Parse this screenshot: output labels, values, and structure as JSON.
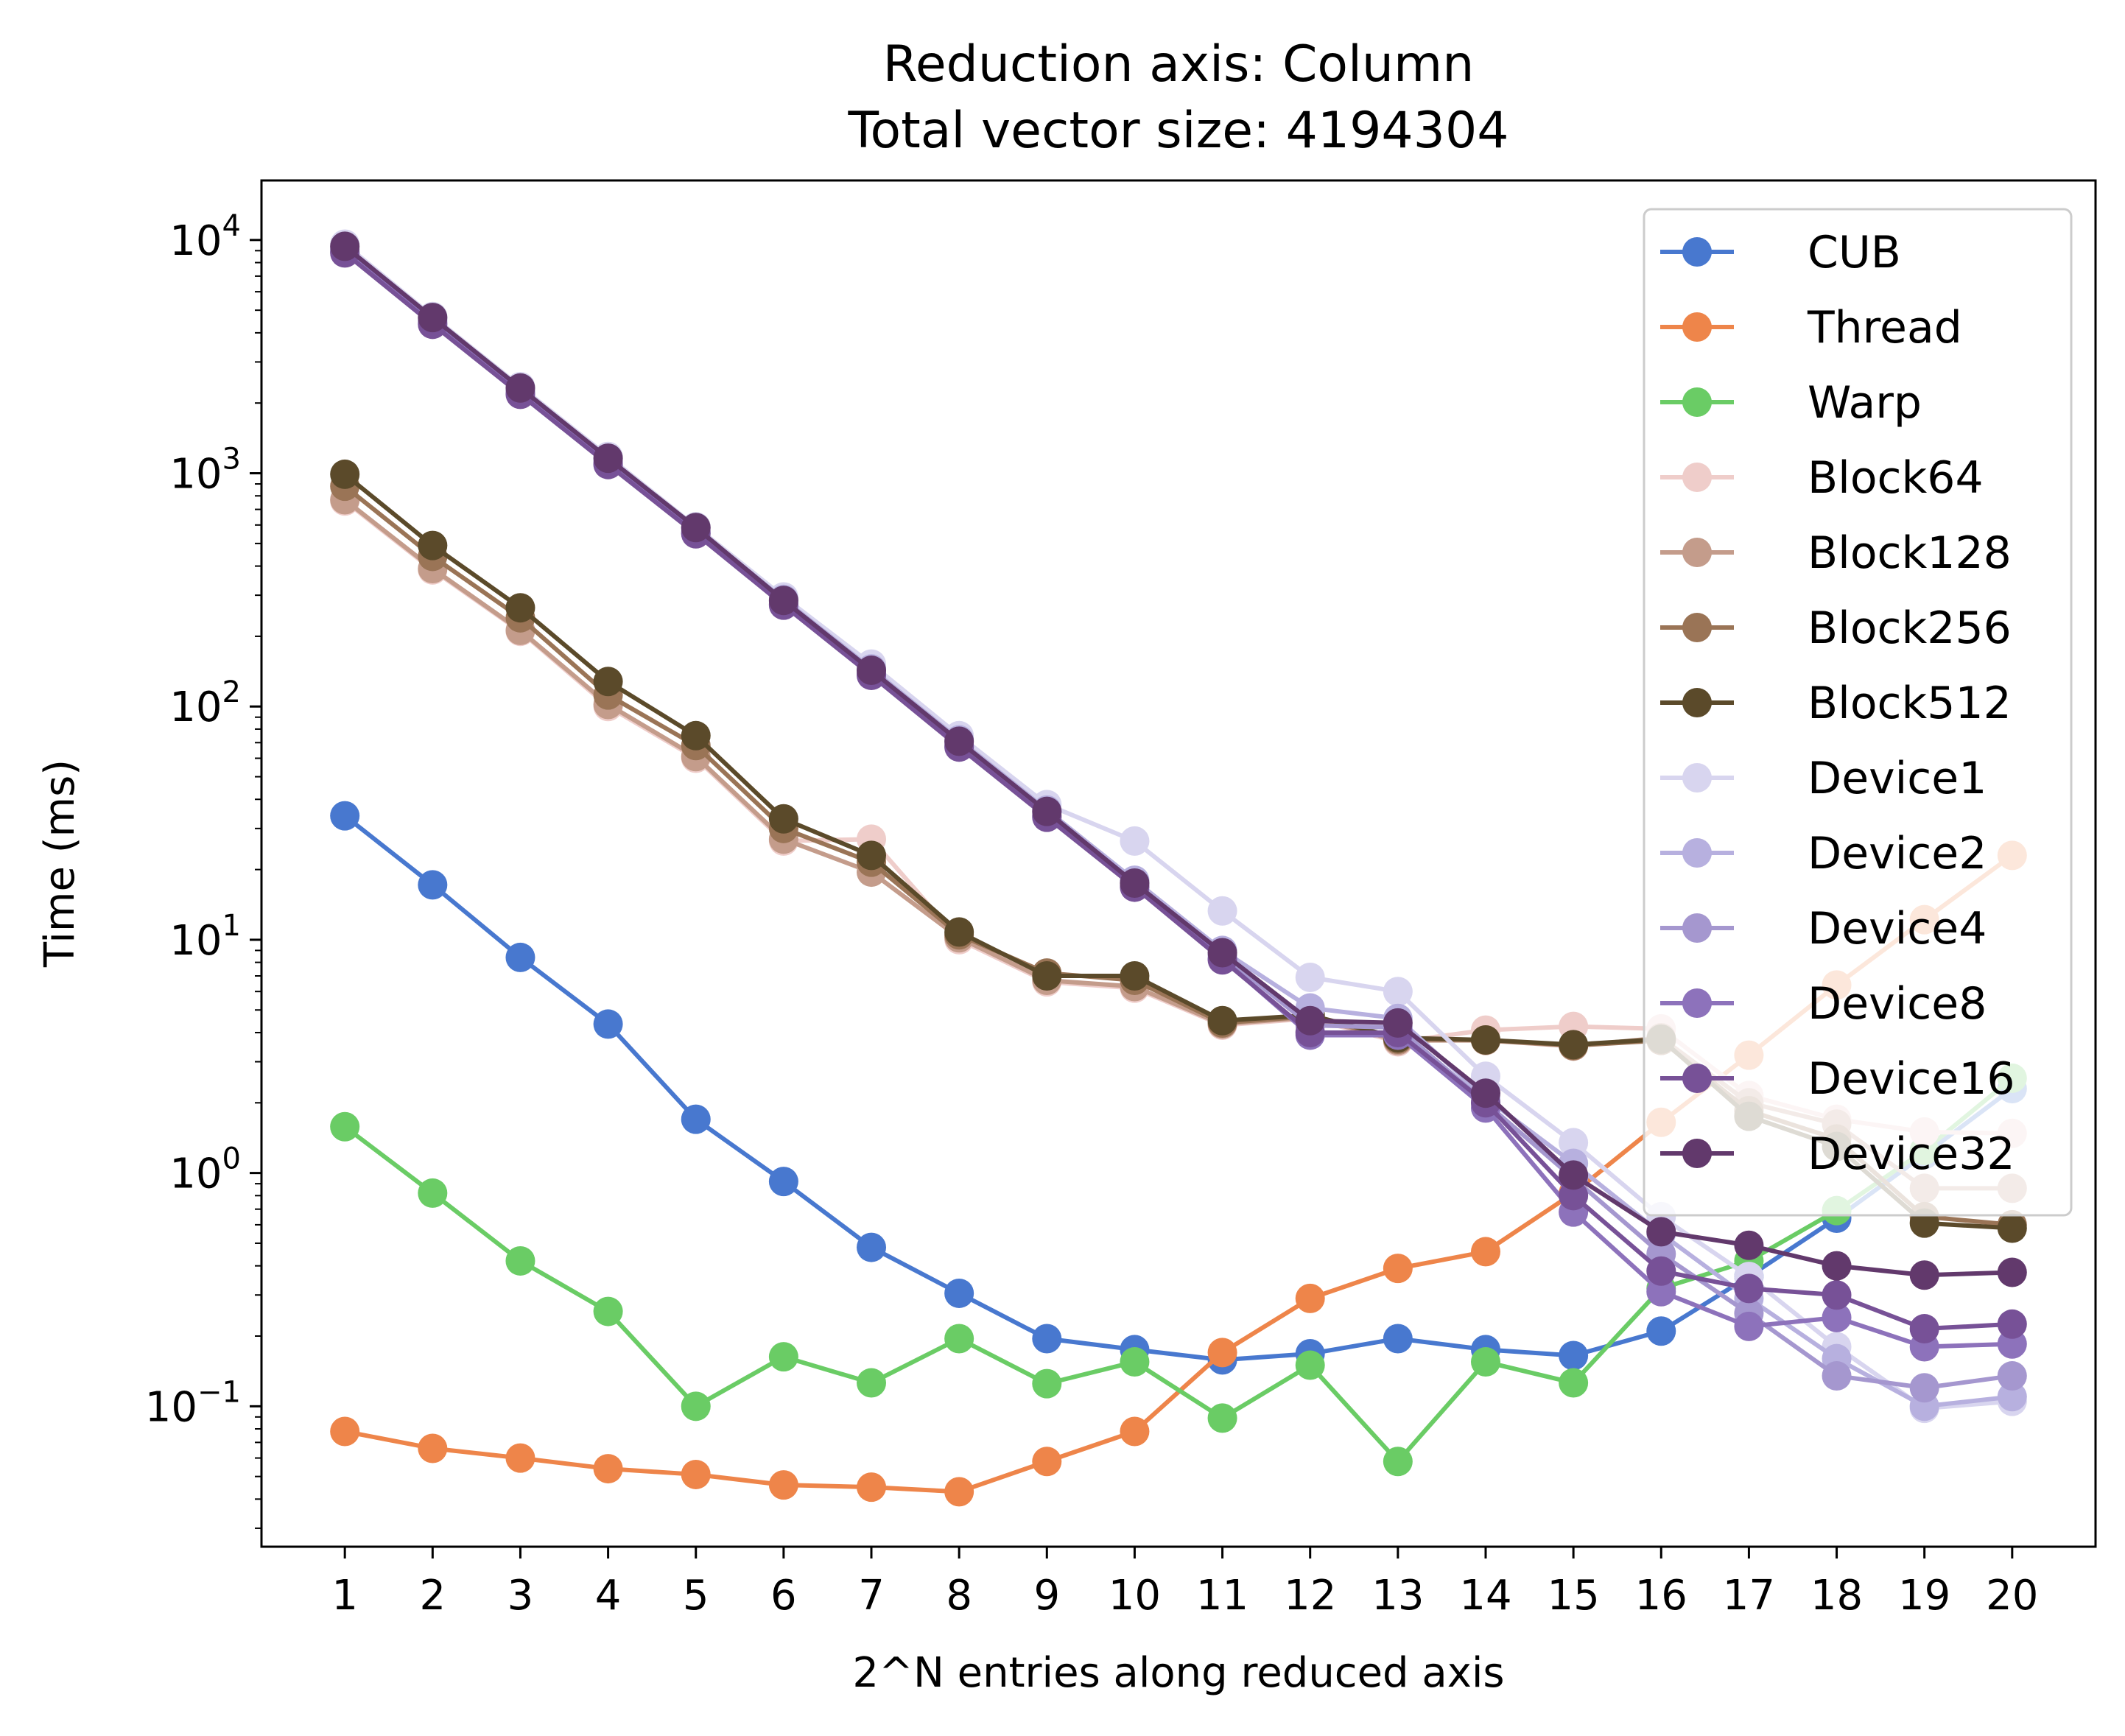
{
  "chart_data": {
    "type": "line",
    "title": "Reduction axis: Column",
    "subtitle": "Total vector size: 4194304",
    "xlabel": "2^N entries along reduced axis",
    "ylabel": "Time (ms)",
    "yscale": "log",
    "ylim": [
      0.025,
      18000
    ],
    "xlim": [
      0.05,
      20.95
    ],
    "x": [
      1,
      2,
      3,
      4,
      5,
      6,
      7,
      8,
      9,
      10,
      11,
      12,
      13,
      14,
      15,
      16,
      17,
      18,
      19,
      20
    ],
    "x_tick_labels": [
      "1",
      "2",
      "3",
      "4",
      "5",
      "6",
      "7",
      "8",
      "9",
      "10",
      "11",
      "12",
      "13",
      "14",
      "15",
      "16",
      "17",
      "18",
      "19",
      "20"
    ],
    "y_ticks": [
      {
        "value": 0.1,
        "base": "10",
        "exp": "−1"
      },
      {
        "value": 1,
        "base": "10",
        "exp": "0"
      },
      {
        "value": 10,
        "base": "10",
        "exp": "1"
      },
      {
        "value": 100,
        "base": "10",
        "exp": "2"
      },
      {
        "value": 1000,
        "base": "10",
        "exp": "3"
      },
      {
        "value": 10000,
        "base": "10",
        "exp": "4"
      }
    ],
    "legend_position": "top-right",
    "grid": false,
    "series": [
      {
        "name": "CUB",
        "color": "#4878cf",
        "values": [
          34,
          17.2,
          8.4,
          4.35,
          1.7,
          0.92,
          0.48,
          0.305,
          0.195,
          0.175,
          0.158,
          0.168,
          0.195,
          0.175,
          0.165,
          0.21,
          0.36,
          0.64,
          1.2,
          2.3
        ]
      },
      {
        "name": "Thread",
        "color": "#ee854a",
        "values": [
          0.078,
          0.066,
          0.06,
          0.054,
          0.051,
          0.046,
          0.045,
          0.043,
          0.058,
          0.078,
          0.17,
          0.29,
          0.39,
          0.46,
          0.82,
          1.65,
          3.2,
          6.4,
          12.2,
          23
        ]
      },
      {
        "name": "Warp",
        "color": "#6acc65",
        "values": [
          1.58,
          0.82,
          0.42,
          0.255,
          0.1,
          0.163,
          0.126,
          0.195,
          0.125,
          0.155,
          0.089,
          0.15,
          0.058,
          0.155,
          0.126,
          0.32,
          0.42,
          0.69,
          1.25,
          2.55
        ]
      },
      {
        "name": "Block64",
        "color": "#efcdca",
        "values": [
          760,
          385,
          210,
          100,
          60,
          26.5,
          27,
          10,
          6.6,
          6.2,
          4.3,
          4.6,
          3.65,
          4.1,
          4.25,
          4.15,
          2.15,
          1.7,
          1.5,
          1.48
        ]
      },
      {
        "name": "Block128",
        "color": "#c49c8b",
        "values": [
          770,
          390,
          212,
          102,
          61,
          27,
          19.5,
          10.2,
          6.7,
          6.3,
          4.35,
          4.65,
          3.7,
          3.7,
          3.5,
          3.8,
          2.0,
          1.62,
          0.86,
          0.86
        ]
      },
      {
        "name": "Block256",
        "color": "#9a7456",
        "values": [
          880,
          440,
          240,
          112,
          68,
          30,
          21.5,
          10.5,
          7.2,
          6.7,
          4.4,
          4.7,
          3.75,
          3.72,
          3.52,
          3.7,
          1.85,
          1.4,
          0.65,
          0.6
        ]
      },
      {
        "name": "Block512",
        "color": "#5b4a2a",
        "values": [
          990,
          490,
          265,
          128,
          75,
          33,
          23,
          10.8,
          7.0,
          7.0,
          4.5,
          4.75,
          3.8,
          3.72,
          3.55,
          3.75,
          1.75,
          1.3,
          0.61,
          0.58
        ]
      },
      {
        "name": "Device1",
        "color": "#d8d5ef",
        "values": [
          9600,
          4700,
          2350,
          1180,
          590,
          295,
          152,
          75,
          38,
          26.5,
          13.3,
          6.9,
          6.0,
          2.6,
          1.35,
          0.65,
          0.36,
          0.18,
          0.098,
          0.105
        ]
      },
      {
        "name": "Device2",
        "color": "#b7b0df",
        "values": [
          9300,
          4600,
          2300,
          1150,
          580,
          288,
          145,
          72,
          36,
          18,
          9.0,
          5.1,
          4.6,
          2.1,
          1.1,
          0.55,
          0.29,
          0.16,
          0.1,
          0.11
        ]
      },
      {
        "name": "Device4",
        "color": "#a597cf",
        "values": [
          9100,
          4500,
          2250,
          1120,
          565,
          282,
          142,
          70,
          35,
          17.5,
          8.6,
          4.3,
          4.2,
          2.0,
          0.95,
          0.45,
          0.25,
          0.135,
          0.12,
          0.135
        ]
      },
      {
        "name": "Device8",
        "color": "#8d72bb",
        "values": [
          8900,
          4400,
          2200,
          1100,
          555,
          275,
          138,
          68,
          34,
          17,
          8.3,
          3.9,
          3.9,
          1.9,
          0.68,
          0.31,
          0.22,
          0.24,
          0.18,
          0.185
        ]
      },
      {
        "name": "Device16",
        "color": "#775197",
        "values": [
          8800,
          4350,
          2180,
          1090,
          550,
          272,
          136,
          67,
          33.5,
          16.8,
          8.2,
          4.0,
          4.0,
          2.0,
          0.8,
          0.38,
          0.32,
          0.3,
          0.215,
          0.225
        ]
      },
      {
        "name": "Device32",
        "color": "#62396c",
        "values": [
          9400,
          4650,
          2320,
          1160,
          585,
          285,
          143,
          71,
          35.5,
          17.5,
          8.8,
          4.5,
          4.4,
          2.2,
          0.98,
          0.56,
          0.49,
          0.4,
          0.365,
          0.375
        ]
      }
    ]
  }
}
